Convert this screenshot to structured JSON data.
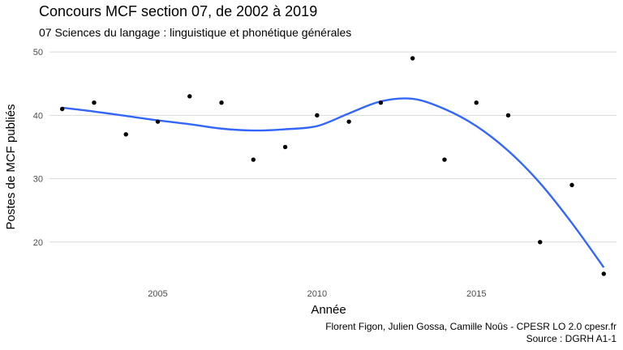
{
  "chart_data": {
    "type": "scatter",
    "title": "Concours MCF section 07, de 2002 à 2019",
    "subtitle": "07 Sciences du langage : linguistique et phonétique générales",
    "xlabel": "Année",
    "ylabel": "Postes de MCF publiés",
    "caption_line1": "Florent Figon, Julien Gossa, Camille Noûs - CPESR LO 2.0 cpesr.fr",
    "caption_line2": "Source : DGRH A1-1",
    "xlim": [
      2001.6,
      2019.4
    ],
    "ylim": [
      13.2,
      51.8
    ],
    "x_ticks": [
      2005,
      2010,
      2015
    ],
    "y_ticks": [
      20,
      30,
      40,
      50
    ],
    "grid": true,
    "points": [
      {
        "x": 2002,
        "y": 41
      },
      {
        "x": 2003,
        "y": 42
      },
      {
        "x": 2004,
        "y": 37
      },
      {
        "x": 2005,
        "y": 39
      },
      {
        "x": 2006,
        "y": 43
      },
      {
        "x": 2007,
        "y": 42
      },
      {
        "x": 2008,
        "y": 33
      },
      {
        "x": 2009,
        "y": 35
      },
      {
        "x": 2010,
        "y": 40
      },
      {
        "x": 2011,
        "y": 39
      },
      {
        "x": 2012,
        "y": 42
      },
      {
        "x": 2013,
        "y": 49
      },
      {
        "x": 2014,
        "y": 33
      },
      {
        "x": 2015,
        "y": 42
      },
      {
        "x": 2016,
        "y": 40
      },
      {
        "x": 2017,
        "y": 20
      },
      {
        "x": 2018,
        "y": 29
      },
      {
        "x": 2019,
        "y": 15
      }
    ],
    "trend": {
      "method": "smooth",
      "color": "#3366ff",
      "points": [
        {
          "x": 2002,
          "y": 41.2
        },
        {
          "x": 2003,
          "y": 40.6
        },
        {
          "x": 2004,
          "y": 39.9
        },
        {
          "x": 2005,
          "y": 39.2
        },
        {
          "x": 2006,
          "y": 38.6
        },
        {
          "x": 2007,
          "y": 37.9
        },
        {
          "x": 2008,
          "y": 37.6
        },
        {
          "x": 2009,
          "y": 37.8
        },
        {
          "x": 2010,
          "y": 38.3
        },
        {
          "x": 2011,
          "y": 40.3
        },
        {
          "x": 2012,
          "y": 42.2
        },
        {
          "x": 2013,
          "y": 42.6
        },
        {
          "x": 2014,
          "y": 41.0
        },
        {
          "x": 2015,
          "y": 38.3
        },
        {
          "x": 2016,
          "y": 34.4
        },
        {
          "x": 2017,
          "y": 29.3
        },
        {
          "x": 2018,
          "y": 23.0
        },
        {
          "x": 2019,
          "y": 16.0
        }
      ]
    },
    "colors": {
      "points": "#000000",
      "grid": "#d9d9d9"
    }
  }
}
